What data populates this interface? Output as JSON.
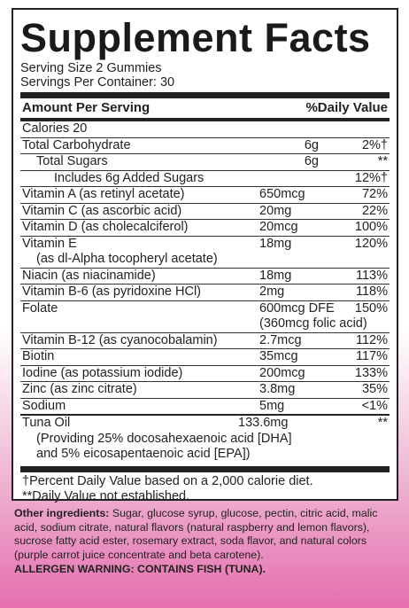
{
  "title": "Supplement Facts",
  "serving_size": "Serving Size 2 Gummies",
  "servings_per_container": "Servings Per Container: 30",
  "header": {
    "amount_label": "Amount Per Serving",
    "dv_label": "%Daily Value"
  },
  "rows": {
    "calories": {
      "name": "Calories  20"
    },
    "carb": {
      "name": "Total Carbohydrate",
      "amount": "6g",
      "dv": "2%†"
    },
    "sugars": {
      "name": "Total Sugars",
      "amount": "6g",
      "dv": "**"
    },
    "added": {
      "name": "Includes 6g Added Sugars",
      "dv": "12%†"
    },
    "vit_a": {
      "name": "Vitamin A (as retinyl acetate)",
      "amount": "650mcg",
      "dv": "72%"
    },
    "vit_c": {
      "name": "Vitamin C (as ascorbic acid)",
      "amount": "20mg",
      "dv": "22%"
    },
    "vit_d": {
      "name": "Vitamin D (as cholecalciferol)",
      "amount": "20mcg",
      "dv": "100%"
    },
    "vit_e": {
      "name": "Vitamin E",
      "sub": "(as dl-Alpha tocopheryl acetate)",
      "amount": "18mg",
      "dv": "120%"
    },
    "niacin": {
      "name": "Niacin (as niacinamide)",
      "amount": "18mg",
      "dv": "113%"
    },
    "b6": {
      "name": "Vitamin B-6 (as pyridoxine HCl)",
      "amount": "2mg",
      "dv": "118%"
    },
    "folate": {
      "name": "Folate",
      "amount": "600mcg DFE",
      "amount2": "(360mcg folic acid)",
      "dv": "150%"
    },
    "b12": {
      "name": "Vitamin B-12 (as cyanocobalamin)",
      "amount": "2.7mcg",
      "dv": "112%"
    },
    "biotin": {
      "name": "Biotin",
      "amount": "35mcg",
      "dv": "117%"
    },
    "iodine": {
      "name": "Iodine (as potassium iodide)",
      "amount": "200mcg",
      "dv": "133%"
    },
    "zinc": {
      "name": "Zinc (as zinc citrate)",
      "amount": "3.8mg",
      "dv": "35%"
    },
    "sodium": {
      "name": "Sodium",
      "amount": "5mg",
      "dv": "<1%"
    },
    "tuna": {
      "name": "Tuna Oil",
      "amount": "133.6mg",
      "dv": "**",
      "sub1": "(Providing 25% docosahexaenoic acid [DHA]",
      "sub2": "and 5% eicosapentaenoic acid [EPA])"
    }
  },
  "footnotes": {
    "pdv": "†Percent Daily Value based on a 2,000 calorie diet.",
    "not_established": "**Daily Value not established."
  },
  "other_ingredients": {
    "label": "Other ingredients:",
    "text": " Sugar, glucose syrup, glucose, pectin, citric acid, malic acid, sodium citrate, natural flavors (natural raspberry and lemon flavors), sucrose fatty acid ester, rosemary extract, soda flavor, and natural colors (purple carrot juice concentrate and beta carotene)."
  },
  "allergen": "ALLERGEN WARNING: CONTAINS FISH (TUNA).",
  "colors": {
    "pink_accent": "#e56fae",
    "text": "#222222"
  }
}
